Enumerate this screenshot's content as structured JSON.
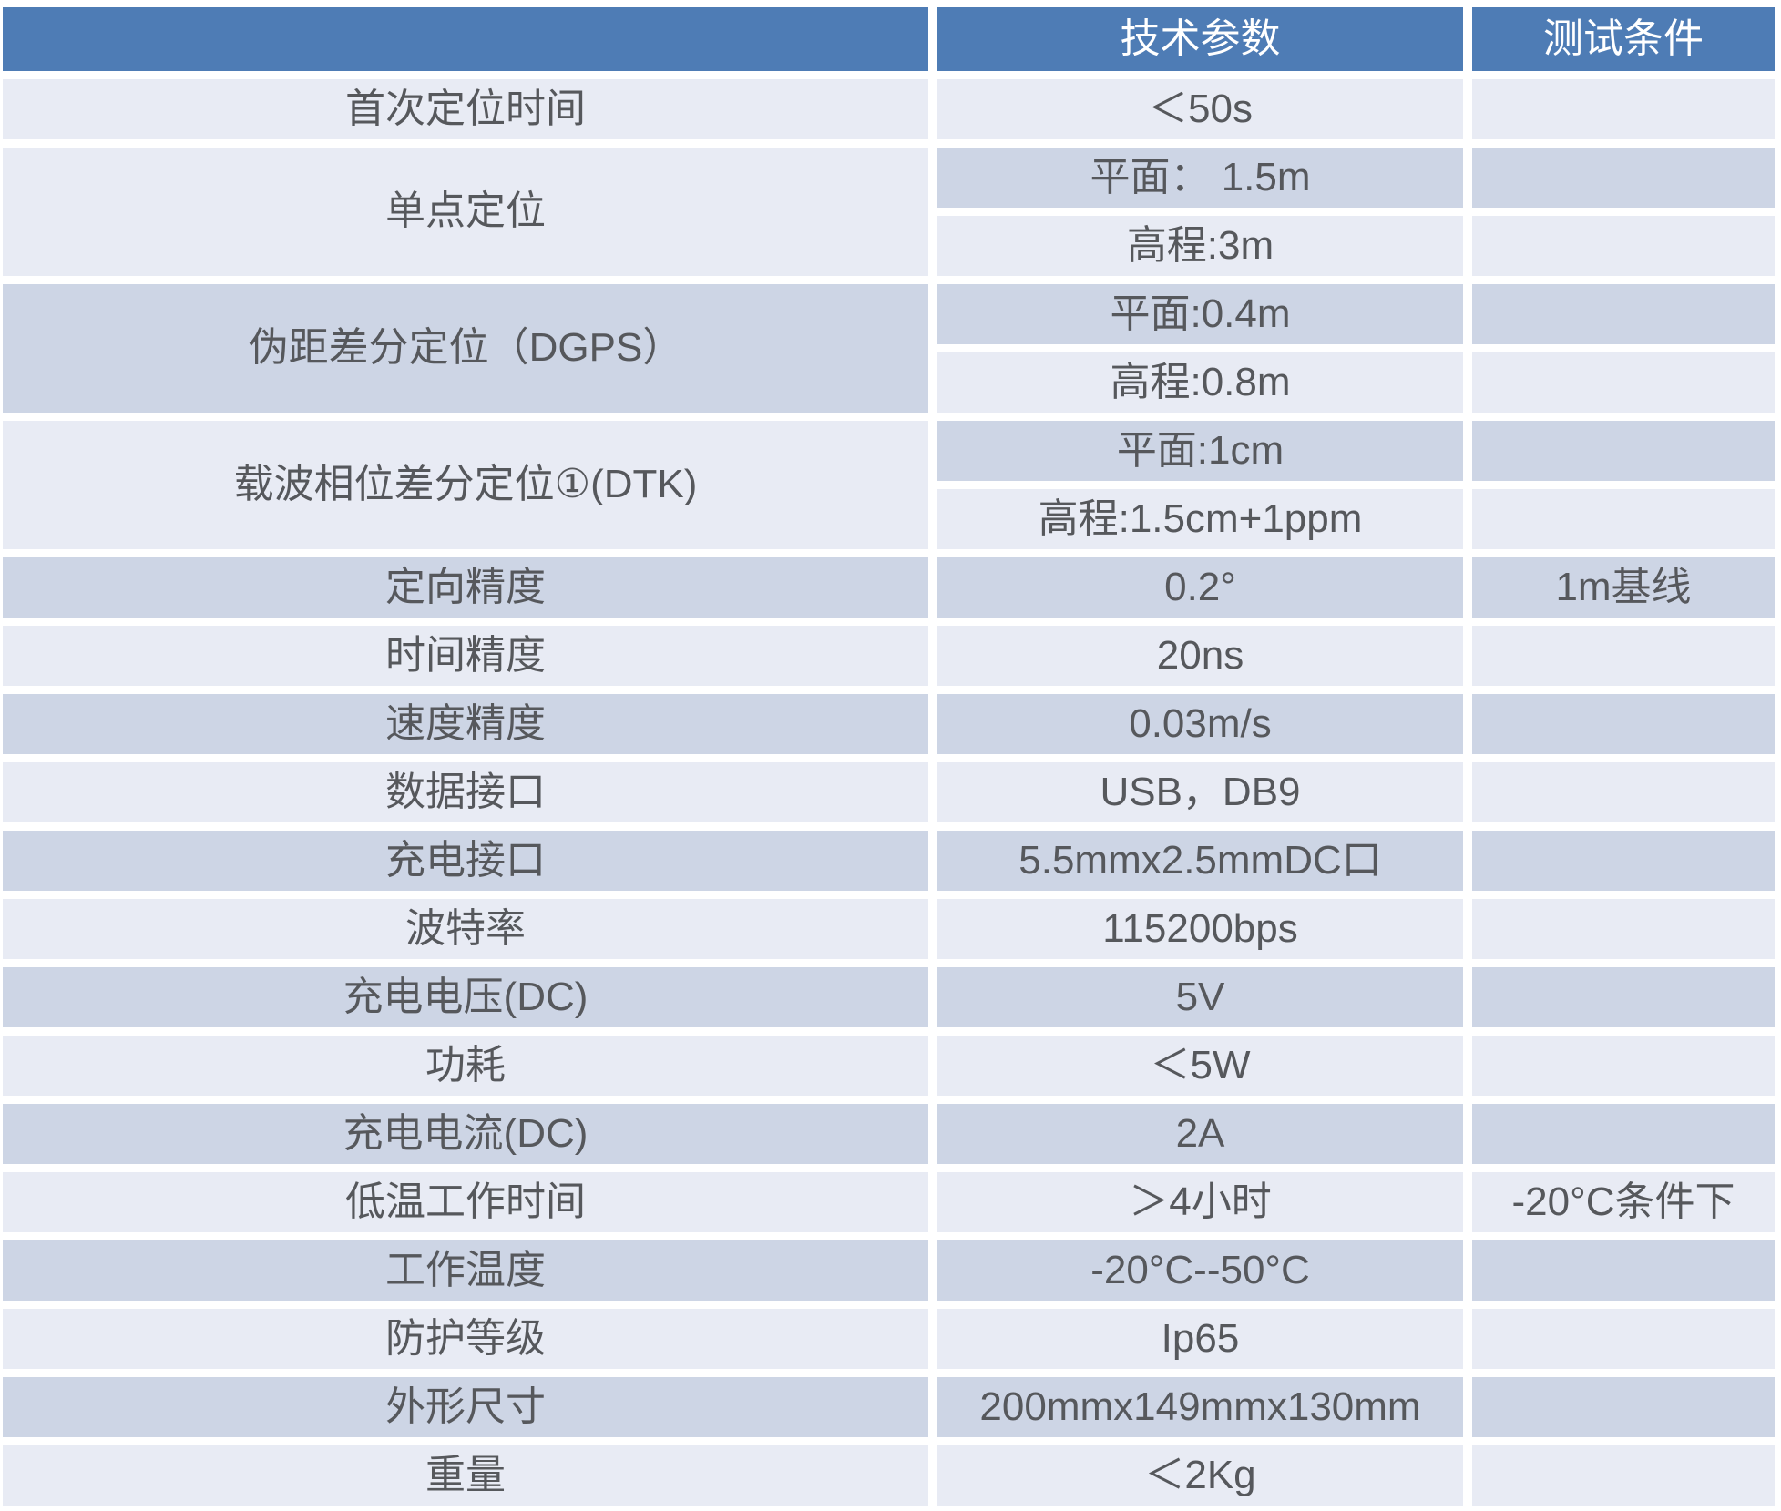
{
  "theme": {
    "header-bg": "#4e7cb5",
    "band-light": "#e8ebf4",
    "band-dark": "#cdd5e5",
    "text": "#56585c",
    "header-text": "#ffffff",
    "page-bg": "#ffffff"
  },
  "table": {
    "header": {
      "param_label": "",
      "tech_label": "技术参数",
      "cond_label": "测试条件"
    },
    "rows": [
      {
        "label": "首次定位时间",
        "cells": [
          {
            "value": "＜50s",
            "condition": ""
          }
        ]
      },
      {
        "label": "单点定位",
        "cells": [
          {
            "value": "平面： 1.5m",
            "condition": ""
          },
          {
            "value": "高程:3m",
            "condition": ""
          }
        ]
      },
      {
        "label": "伪距差分定位（DGPS）",
        "cells": [
          {
            "value": "平面:0.4m",
            "condition": ""
          },
          {
            "value": "高程:0.8m",
            "condition": ""
          }
        ]
      },
      {
        "label": "载波相位差分定位①(DTK)",
        "cells": [
          {
            "value": "平面:1cm",
            "condition": ""
          },
          {
            "value": "高程:1.5cm+1ppm",
            "condition": ""
          }
        ]
      },
      {
        "label": "定向精度",
        "cells": [
          {
            "value": "0.2°",
            "condition": "1m基线"
          }
        ]
      },
      {
        "label": "时间精度",
        "cells": [
          {
            "value": "20ns",
            "condition": ""
          }
        ]
      },
      {
        "label": "速度精度",
        "cells": [
          {
            "value": "0.03m/s",
            "condition": ""
          }
        ]
      },
      {
        "label": "数据接口",
        "cells": [
          {
            "value": "USB，DB9",
            "condition": ""
          }
        ]
      },
      {
        "label": "充电接口",
        "cells": [
          {
            "value": "5.5mmx2.5mmDC口",
            "condition": ""
          }
        ]
      },
      {
        "label": "波特率",
        "cells": [
          {
            "value": "115200bps",
            "condition": ""
          }
        ]
      },
      {
        "label": "充电电压(DC)",
        "cells": [
          {
            "value": "5V",
            "condition": ""
          }
        ]
      },
      {
        "label": "功耗",
        "cells": [
          {
            "value": "＜5W",
            "condition": ""
          }
        ]
      },
      {
        "label": "充电电流(DC)",
        "cells": [
          {
            "value": "2A",
            "condition": ""
          }
        ]
      },
      {
        "label": "低温工作时间",
        "cells": [
          {
            "value": "＞4小时",
            "condition": "-20°C条件下"
          }
        ]
      },
      {
        "label": "工作温度",
        "cells": [
          {
            "value": "-20°C--50°C",
            "condition": ""
          }
        ]
      },
      {
        "label": "防护等级",
        "cells": [
          {
            "value": "Ip65",
            "condition": ""
          }
        ]
      },
      {
        "label": "外形尺寸",
        "cells": [
          {
            "value": "200mmx149mmx130mm",
            "condition": ""
          }
        ]
      },
      {
        "label": "重量",
        "cells": [
          {
            "value": "＜2Kg",
            "condition": ""
          }
        ]
      }
    ]
  }
}
